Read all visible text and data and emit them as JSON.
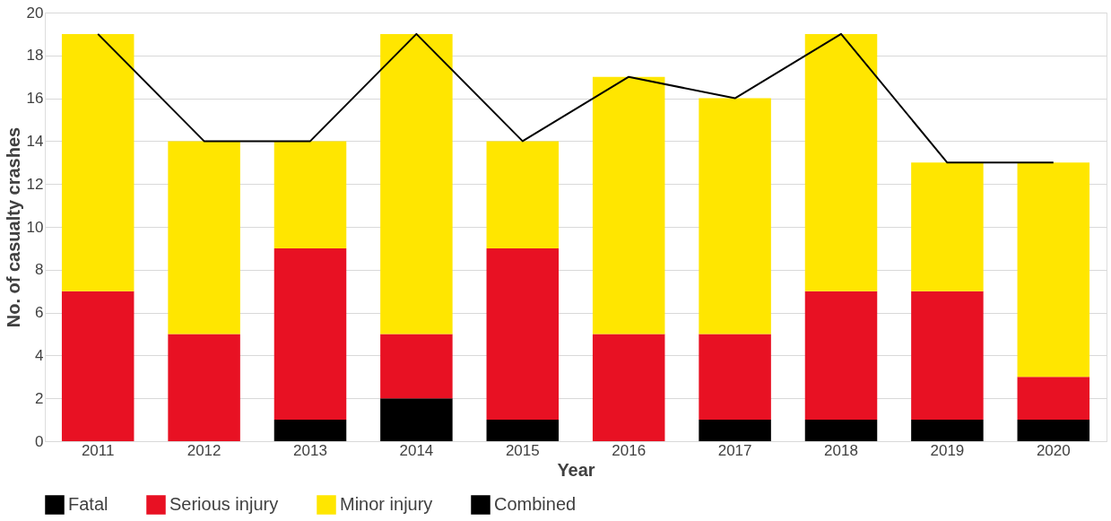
{
  "chart_data": {
    "type": "bar",
    "stacked": true,
    "xlabel": "Year",
    "ylabel": "No. of casualty crashes",
    "categories": [
      "2011",
      "2012",
      "2013",
      "2014",
      "2015",
      "2016",
      "2017",
      "2018",
      "2019",
      "2020"
    ],
    "series": [
      {
        "name": "Fatal",
        "color": "#000000",
        "values": [
          0,
          0,
          1,
          2,
          1,
          0,
          1,
          1,
          1,
          1
        ]
      },
      {
        "name": "Serious injury",
        "color": "#e81123",
        "values": [
          7,
          5,
          8,
          3,
          8,
          5,
          4,
          6,
          6,
          2
        ]
      },
      {
        "name": "Minor injury",
        "color": "#ffe600",
        "values": [
          12,
          9,
          5,
          14,
          5,
          12,
          11,
          12,
          6,
          10
        ]
      },
      {
        "name": "Combined",
        "type": "line",
        "color": "#000000",
        "values": [
          19,
          14,
          14,
          19,
          14,
          17,
          16,
          19,
          13,
          13
        ]
      }
    ],
    "ylim": [
      0,
      20
    ],
    "yticks": [
      0,
      2,
      4,
      6,
      8,
      10,
      12,
      14,
      16,
      18,
      20
    ],
    "grid": "y",
    "legend": "bottom",
    "marker": "none"
  }
}
